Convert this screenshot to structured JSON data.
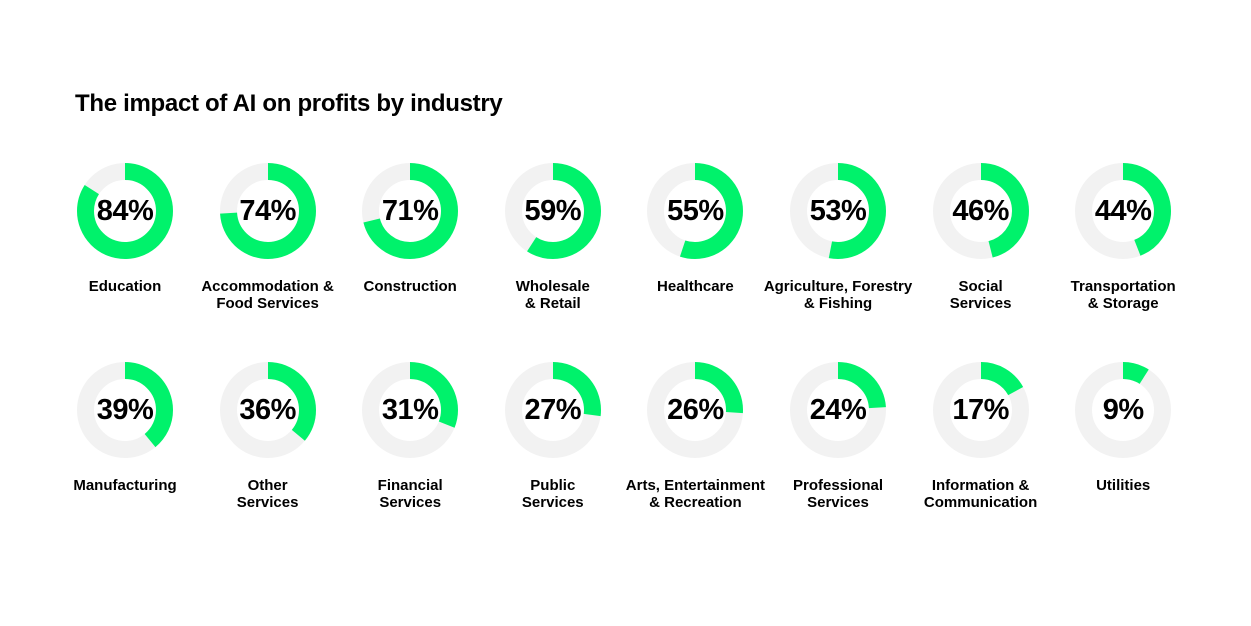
{
  "title": "The impact of AI on profits by industry",
  "colors": {
    "accent": "#00f26b",
    "track": "#f2f2f2"
  },
  "chart_data": {
    "type": "donut-grid",
    "title": "The impact of AI on profits by industry",
    "unit": "%",
    "items": [
      {
        "label": "Education",
        "value": 84,
        "value_label": "84%"
      },
      {
        "label": "Accommodation &\nFood Services",
        "value": 74,
        "value_label": "74%"
      },
      {
        "label": "Construction",
        "value": 71,
        "value_label": "71%"
      },
      {
        "label": "Wholesale\n& Retail",
        "value": 59,
        "value_label": "59%"
      },
      {
        "label": "Healthcare",
        "value": 55,
        "value_label": "55%"
      },
      {
        "label": "Agriculture, Forestry\n& Fishing",
        "value": 53,
        "value_label": "53%"
      },
      {
        "label": "Social\nServices",
        "value": 46,
        "value_label": "46%"
      },
      {
        "label": "Transportation\n& Storage",
        "value": 44,
        "value_label": "44%"
      },
      {
        "label": "Manufacturing",
        "value": 39,
        "value_label": "39%"
      },
      {
        "label": "Other\nServices",
        "value": 36,
        "value_label": "36%"
      },
      {
        "label": "Financial\nServices",
        "value": 31,
        "value_label": "31%"
      },
      {
        "label": "Public\nServices",
        "value": 27,
        "value_label": "27%"
      },
      {
        "label": "Arts, Entertainment\n& Recreation",
        "value": 26,
        "value_label": "26%"
      },
      {
        "label": "Professional\nServices",
        "value": 24,
        "value_label": "24%"
      },
      {
        "label": "Information &\nCommunication",
        "value": 17,
        "value_label": "17%"
      },
      {
        "label": "Utilities",
        "value": 9,
        "value_label": "9%"
      }
    ]
  }
}
